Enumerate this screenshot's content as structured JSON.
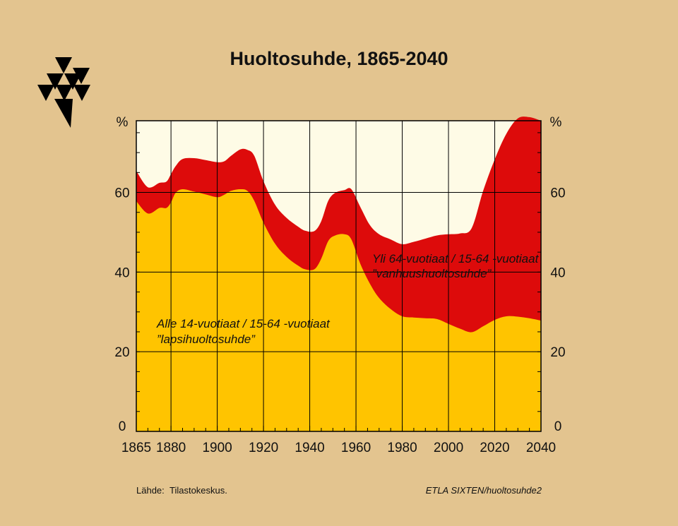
{
  "colors": {
    "background": "#e3c48f",
    "plot_background": "#fefbe6",
    "child_dependency": "#ffc400",
    "old_age_dependency": "#dd0b0b",
    "grid": "#000000"
  },
  "logo": {
    "icon": "etla-triangles-logo"
  },
  "footer": {
    "source_label": "Lähde:",
    "source_value": "Tilastokeskus.",
    "credit": "ETLA  SIXTEN/huoltosuhde2"
  },
  "chart_data": {
    "type": "area",
    "stacked": true,
    "title": "Huoltosuhde, 1865-2040",
    "ylabel_left": "%",
    "ylabel_right": "%",
    "xlim": [
      1865,
      2040
    ],
    "ylim": [
      0,
      78
    ],
    "x_ticks": [
      1865,
      1880,
      1900,
      1920,
      1940,
      1960,
      1980,
      2000,
      2020,
      2040
    ],
    "y_ticks": [
      0,
      20,
      40,
      60
    ],
    "grid": true,
    "series": [
      {
        "id": "child",
        "color": "#ffc400",
        "label_lines": [
          "Alle 14-vuotiaat / 15-64 -vuotiaat",
          "”lapsihuoltosuhde”"
        ],
        "points": [
          [
            1865,
            57.8
          ],
          [
            1870,
            54.7
          ],
          [
            1875,
            56.1
          ],
          [
            1878,
            56.1
          ],
          [
            1880,
            57.5
          ],
          [
            1882,
            59.9
          ],
          [
            1885,
            60.8
          ],
          [
            1890,
            60.2
          ],
          [
            1895,
            59.5
          ],
          [
            1900,
            58.8
          ],
          [
            1903,
            59.4
          ],
          [
            1906,
            60.4
          ],
          [
            1910,
            60.8
          ],
          [
            1913,
            60.4
          ],
          [
            1916,
            57.9
          ],
          [
            1920,
            52.4
          ],
          [
            1925,
            47.1
          ],
          [
            1930,
            43.8
          ],
          [
            1935,
            41.6
          ],
          [
            1938,
            40.7
          ],
          [
            1942,
            40.7
          ],
          [
            1945,
            43.4
          ],
          [
            1948,
            47.8
          ],
          [
            1951,
            49.2
          ],
          [
            1955,
            49.5
          ],
          [
            1958,
            48.2
          ],
          [
            1962,
            41.9
          ],
          [
            1966,
            37.1
          ],
          [
            1970,
            33.5
          ],
          [
            1975,
            30.7
          ],
          [
            1980,
            28.9
          ],
          [
            1985,
            28.6
          ],
          [
            1990,
            28.4
          ],
          [
            1995,
            28.2
          ],
          [
            2000,
            27.0
          ],
          [
            2005,
            25.8
          ],
          [
            2010,
            24.9
          ],
          [
            2015,
            26.4
          ],
          [
            2020,
            28.0
          ],
          [
            2025,
            28.9
          ],
          [
            2030,
            28.8
          ],
          [
            2035,
            28.4
          ],
          [
            2040,
            27.8
          ]
        ]
      },
      {
        "id": "old",
        "color": "#dd0b0b",
        "label_lines": [
          "Yli 64-vuotiaat / 15-64 -vuotiaat",
          "”vanhuushuoltosuhde”"
        ],
        "points": [
          [
            1865,
            7.6
          ],
          [
            1870,
            6.6
          ],
          [
            1875,
            6.3
          ],
          [
            1878,
            6.6
          ],
          [
            1880,
            7.1
          ],
          [
            1882,
            6.7
          ],
          [
            1885,
            7.6
          ],
          [
            1890,
            8.4
          ],
          [
            1895,
            8.6
          ],
          [
            1900,
            8.8
          ],
          [
            1903,
            8.4
          ],
          [
            1906,
            8.8
          ],
          [
            1910,
            10.0
          ],
          [
            1913,
            10.3
          ],
          [
            1916,
            11.3
          ],
          [
            1920,
            10.4
          ],
          [
            1925,
            9.8
          ],
          [
            1930,
            9.8
          ],
          [
            1935,
            9.8
          ],
          [
            1938,
            9.7
          ],
          [
            1942,
            9.6
          ],
          [
            1945,
            9.4
          ],
          [
            1948,
            10.1
          ],
          [
            1951,
            10.7
          ],
          [
            1955,
            11.1
          ],
          [
            1958,
            12.6
          ],
          [
            1962,
            14.3
          ],
          [
            1966,
            14.7
          ],
          [
            1970,
            16.0
          ],
          [
            1975,
            17.5
          ],
          [
            1980,
            18.1
          ],
          [
            1985,
            19.0
          ],
          [
            1990,
            20.0
          ],
          [
            1995,
            21.0
          ],
          [
            2000,
            22.5
          ],
          [
            2005,
            23.9
          ],
          [
            2010,
            26.1
          ],
          [
            2015,
            34.0
          ],
          [
            2020,
            40.3
          ],
          [
            2025,
            45.8
          ],
          [
            2030,
            49.8
          ],
          [
            2035,
            50.5
          ],
          [
            2040,
            50.2
          ]
        ]
      }
    ]
  }
}
